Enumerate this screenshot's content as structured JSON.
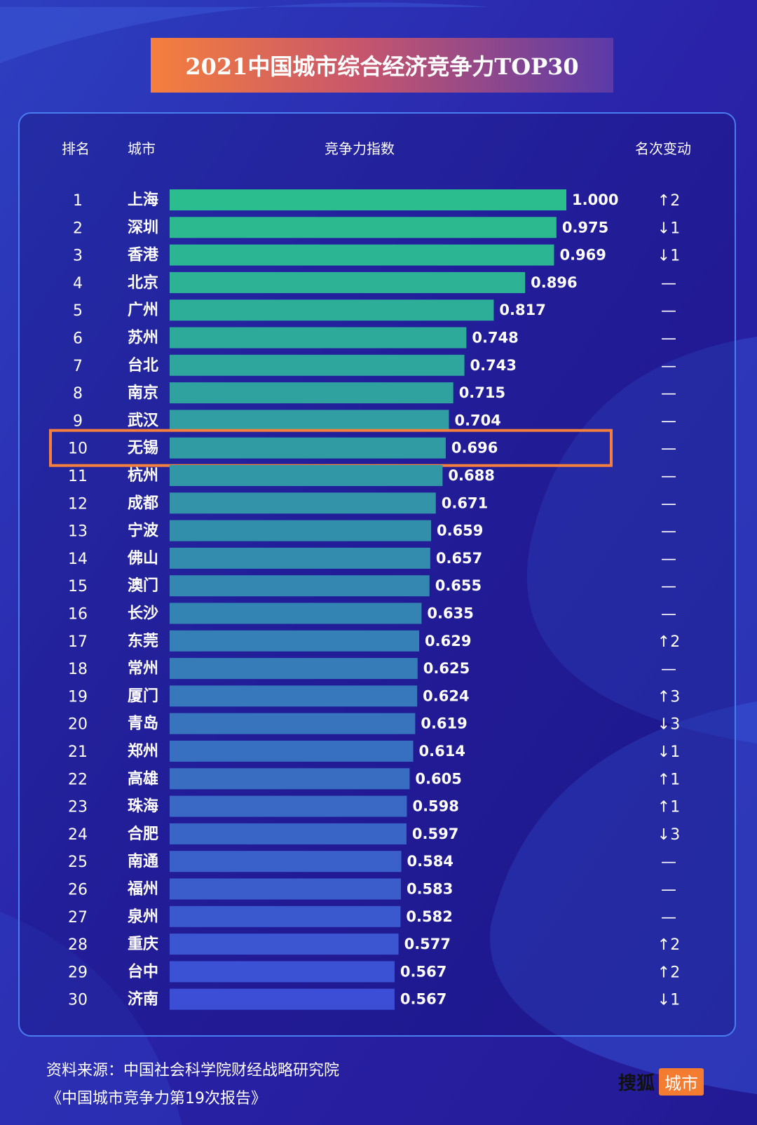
{
  "title": "2021中国城市综合经济竞争力TOP30",
  "headers": {
    "rank": "排名",
    "city": "城市",
    "index": "竞争力指数",
    "change": "名次变动"
  },
  "highlight_city": "无锡",
  "colors": {
    "bar_top": "#2bbd8e",
    "bar_bottom": "#3d4ed6",
    "highlight": "#f57f3d"
  },
  "chart_data": {
    "type": "bar",
    "orientation": "horizontal",
    "rows": [
      {
        "rank": "1",
        "city": "上海",
        "value": 1.0,
        "label": "1.000",
        "change": "↑2"
      },
      {
        "rank": "2",
        "city": "深圳",
        "value": 0.975,
        "label": "0.975",
        "change": "↓1"
      },
      {
        "rank": "3",
        "city": "香港",
        "value": 0.969,
        "label": "0.969",
        "change": "↓1"
      },
      {
        "rank": "4",
        "city": "北京",
        "value": 0.896,
        "label": "0.896",
        "change": "—"
      },
      {
        "rank": "5",
        "city": "广州",
        "value": 0.817,
        "label": "0.817",
        "change": "—"
      },
      {
        "rank": "6",
        "city": "苏州",
        "value": 0.748,
        "label": "0.748",
        "change": "—"
      },
      {
        "rank": "7",
        "city": "台北",
        "value": 0.743,
        "label": "0.743",
        "change": "—"
      },
      {
        "rank": "8",
        "city": "南京",
        "value": 0.715,
        "label": "0.715",
        "change": "—"
      },
      {
        "rank": "9",
        "city": "武汉",
        "value": 0.704,
        "label": "0.704",
        "change": "—"
      },
      {
        "rank": "10",
        "city": "无锡",
        "value": 0.696,
        "label": "0.696",
        "change": "—"
      },
      {
        "rank": "11",
        "city": "杭州",
        "value": 0.688,
        "label": "0.688",
        "change": "—"
      },
      {
        "rank": "12",
        "city": "成都",
        "value": 0.671,
        "label": "0.671",
        "change": "—"
      },
      {
        "rank": "13",
        "city": "宁波",
        "value": 0.659,
        "label": "0.659",
        "change": "—"
      },
      {
        "rank": "14",
        "city": "佛山",
        "value": 0.657,
        "label": "0.657",
        "change": "—"
      },
      {
        "rank": "15",
        "city": "澳门",
        "value": 0.655,
        "label": "0.655",
        "change": "—"
      },
      {
        "rank": "16",
        "city": "长沙",
        "value": 0.635,
        "label": "0.635",
        "change": "—"
      },
      {
        "rank": "17",
        "city": "东莞",
        "value": 0.629,
        "label": "0.629",
        "change": "↑2"
      },
      {
        "rank": "18",
        "city": "常州",
        "value": 0.625,
        "label": "0.625",
        "change": "—"
      },
      {
        "rank": "19",
        "city": "厦门",
        "value": 0.624,
        "label": "0.624",
        "change": "↑3"
      },
      {
        "rank": "20",
        "city": "青岛",
        "value": 0.619,
        "label": "0.619",
        "change": "↓3"
      },
      {
        "rank": "21",
        "city": "郑州",
        "value": 0.614,
        "label": "0.614",
        "change": "↓1"
      },
      {
        "rank": "22",
        "city": "高雄",
        "value": 0.605,
        "label": "0.605",
        "change": "↑1"
      },
      {
        "rank": "23",
        "city": "珠海",
        "value": 0.598,
        "label": "0.598",
        "change": "↑1"
      },
      {
        "rank": "24",
        "city": "合肥",
        "value": 0.597,
        "label": "0.597",
        "change": "↓3"
      },
      {
        "rank": "25",
        "city": "南通",
        "value": 0.584,
        "label": "0.584",
        "change": "—"
      },
      {
        "rank": "26",
        "city": "福州",
        "value": 0.583,
        "label": "0.583",
        "change": "—"
      },
      {
        "rank": "27",
        "city": "泉州",
        "value": 0.582,
        "label": "0.582",
        "change": "—"
      },
      {
        "rank": "28",
        "city": "重庆",
        "value": 0.577,
        "label": "0.577",
        "change": "↑2"
      },
      {
        "rank": "29",
        "city": "台中",
        "value": 0.567,
        "label": "0.567",
        "change": "↑2"
      },
      {
        "rank": "30",
        "city": "济南",
        "value": 0.567,
        "label": "0.567",
        "change": "↓1"
      }
    ]
  },
  "source": {
    "line1": "资料来源：中国社会科学院财经战略研究院",
    "line2": "《中国城市竞争力第19次报告》"
  },
  "logo": {
    "brand": "搜狐",
    "box": "城市"
  }
}
